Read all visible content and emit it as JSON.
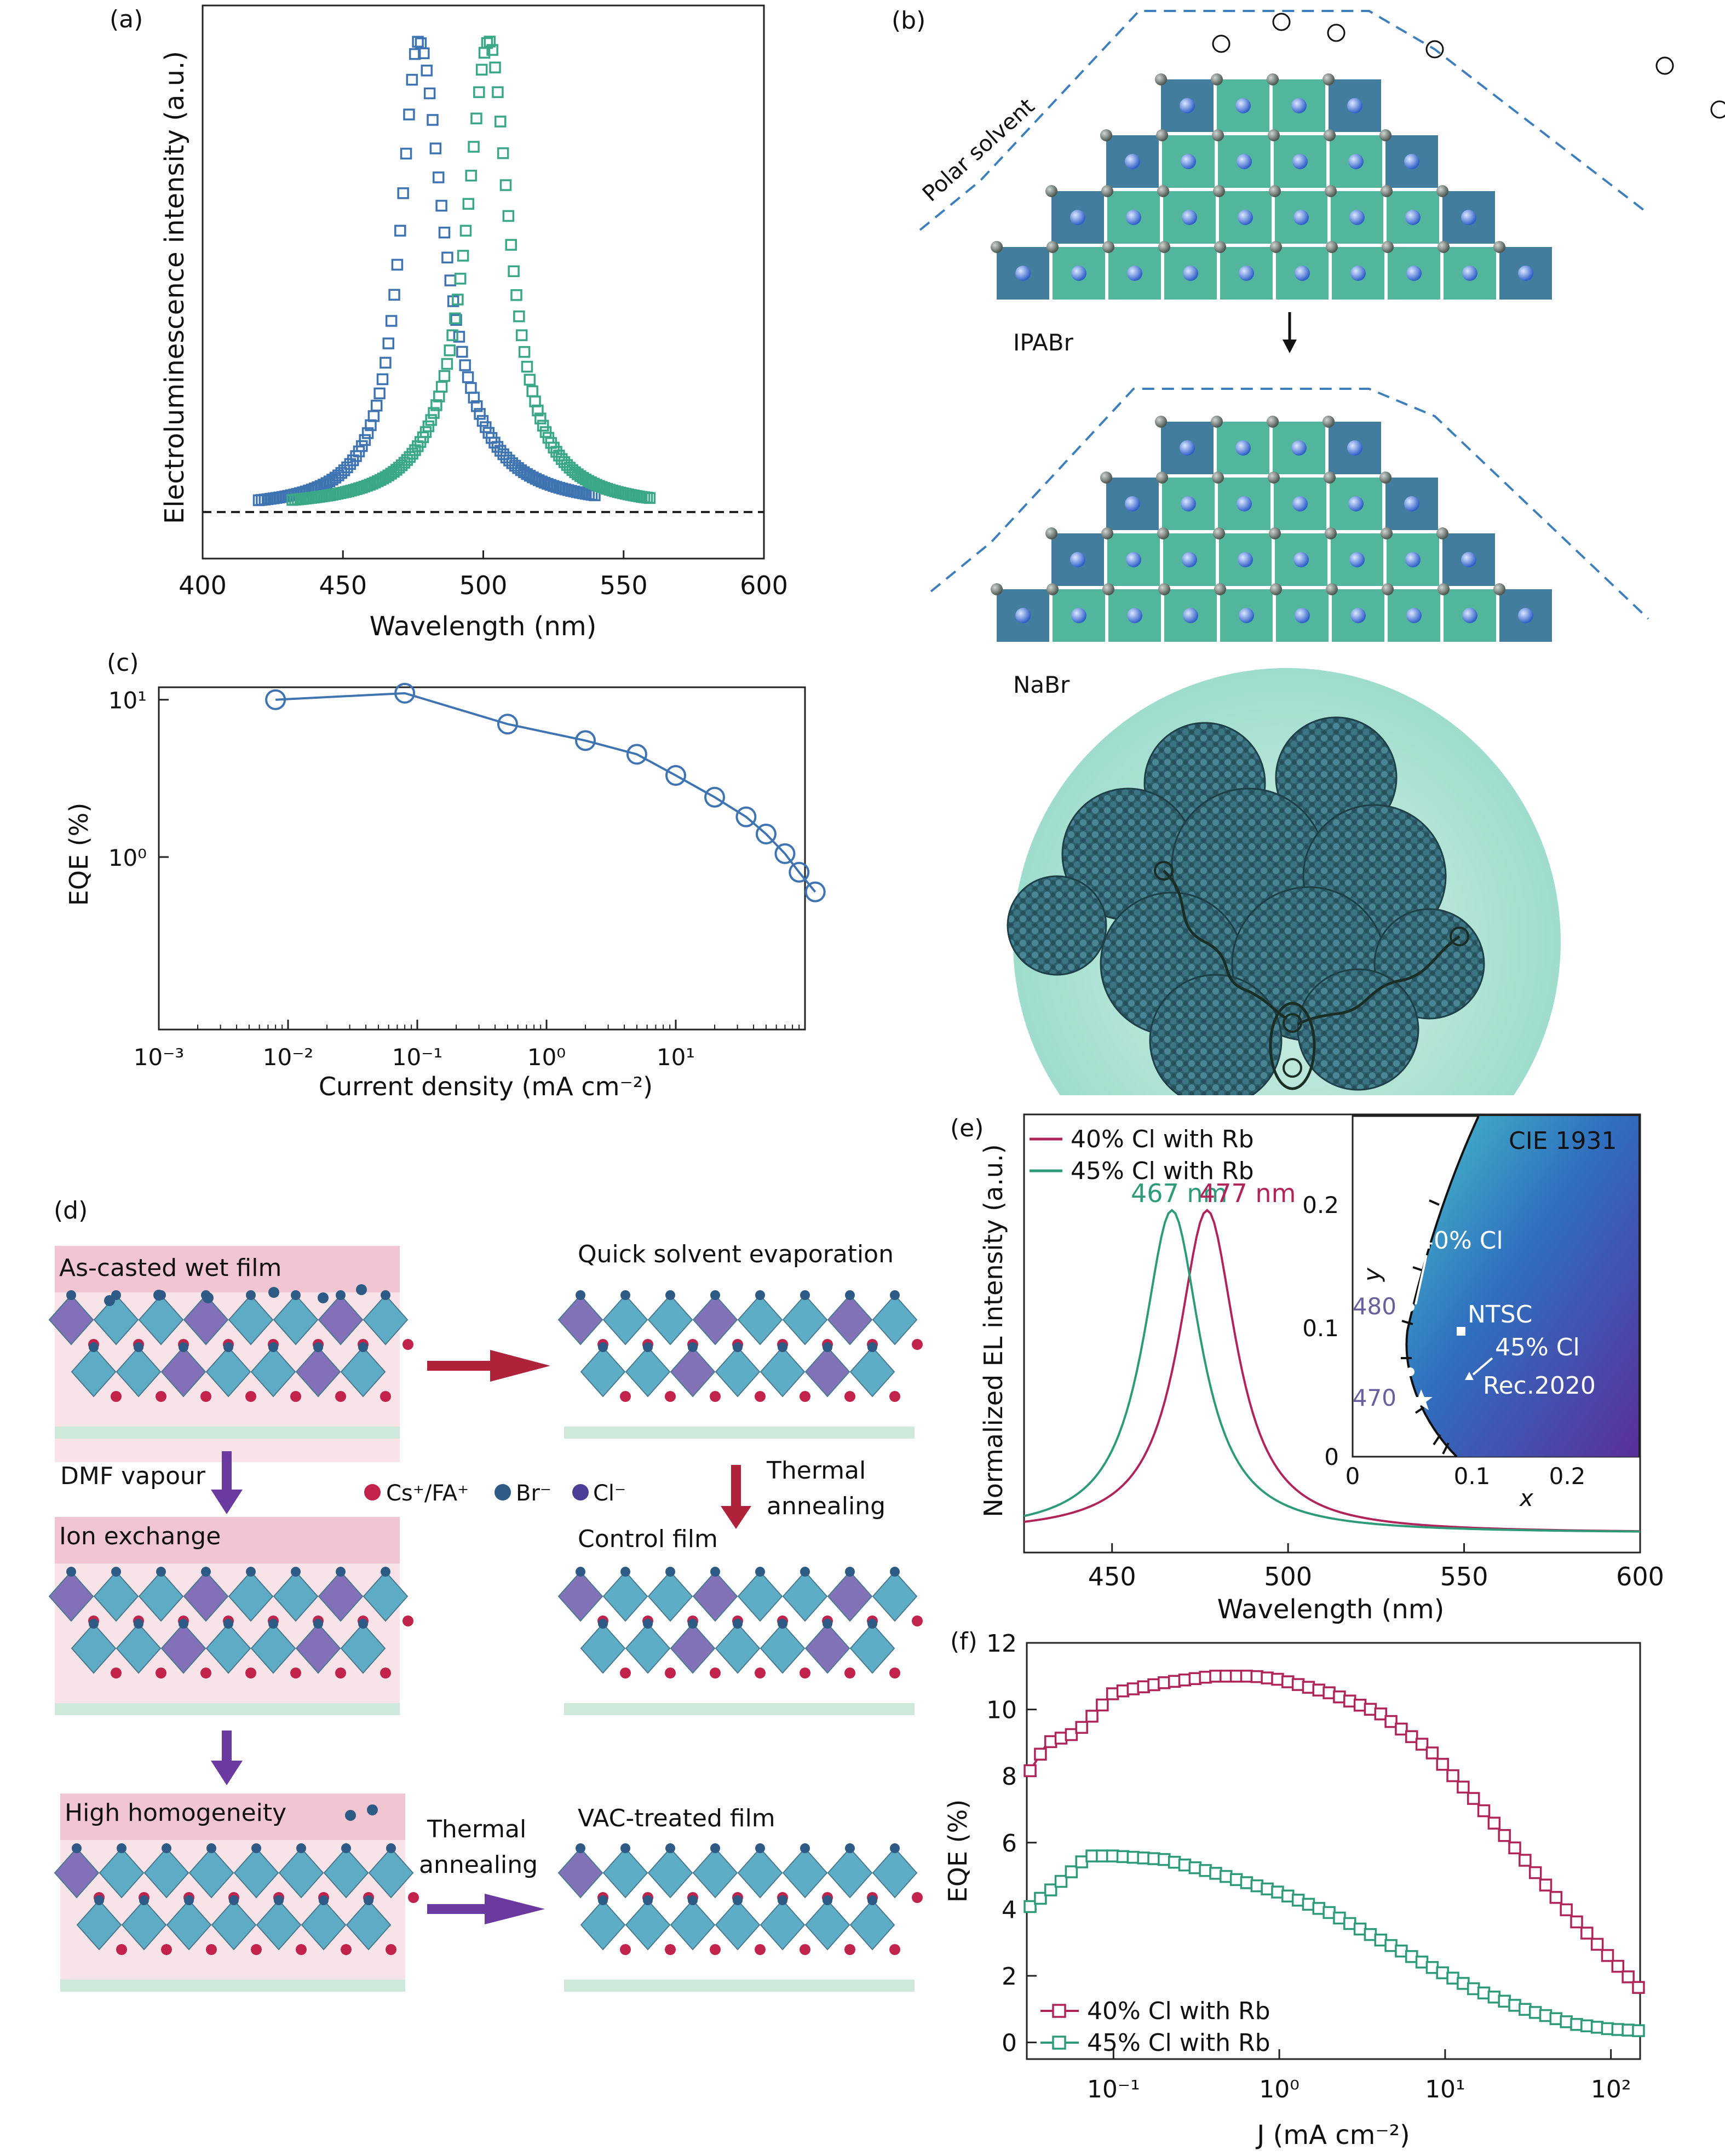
{
  "panels": {
    "a": {
      "letter": "(a)"
    },
    "b": {
      "letter": "(b)",
      "polar_solvent": "Polar solvent",
      "ipabr": "IPABr",
      "nabr": "NaBr"
    },
    "c": {
      "letter": "(c)"
    },
    "d": {
      "letter": "(d)",
      "as_casted": "As-casted wet film",
      "quick_evap": "Quick solvent evaporation",
      "dmf_vapour": "DMF vapour",
      "legend_cs": "Cs⁺/FA⁺",
      "legend_br": "Br⁻",
      "legend_cl": "Cl⁻",
      "thermal1a": "Thermal",
      "thermal1b": "annealing",
      "ion_exchange": "Ion exchange",
      "control_film": "Control film",
      "high_homogeneity": "High homogeneity",
      "thermal2a": "Thermal",
      "thermal2b": "annealing",
      "vac_film": "VAC-treated film"
    },
    "e": {
      "letter": "(e)",
      "peak_green": "467 nm",
      "peak_red": "477 nm",
      "cie_title": "CIE 1931",
      "cie_xlabel": "x",
      "cie_ylabel": "y",
      "cie_xticks": [
        "0",
        "0.1",
        "0.2"
      ],
      "cie_yticks": [
        "0",
        "0.1",
        "0.2"
      ],
      "cie_labels": [
        "40% Cl",
        "NTSC",
        "45% Cl",
        "Rec.2020",
        "480",
        "470"
      ]
    },
    "f": {
      "letter": "(f)"
    }
  },
  "chart_data": [
    {
      "id": "a",
      "type": "scatter",
      "xlabel": "Wavelength (nm)",
      "ylabel": "Electroluminescence intensity (a.u.)",
      "xlim": [
        400,
        600
      ],
      "xticks": [
        "400",
        "450",
        "500",
        "550",
        "600"
      ],
      "baseline": "dashed",
      "series": [
        {
          "color": "#3f74b3",
          "center": 477,
          "width_left": 8,
          "width_right": 11,
          "x_start": 420,
          "x_end": 540
        },
        {
          "color": "#3aa886",
          "center": 502,
          "width_left": 10,
          "width_right": 9,
          "x_start": 432,
          "x_end": 560
        }
      ]
    },
    {
      "id": "c",
      "type": "line",
      "xlabel": "Current density (mA cm⁻²)",
      "ylabel": "EQE (%)",
      "xscale": "log",
      "yscale": "log",
      "xlim": [
        0.001,
        100
      ],
      "ylim": [
        0.08,
        12
      ],
      "xticks": [
        "10⁻³",
        "10⁻²",
        "10⁻¹",
        "10⁰",
        "10¹"
      ],
      "yticks": [
        "10¹",
        "10⁰"
      ],
      "x": [
        0.008,
        0.08,
        0.5,
        2,
        5,
        10,
        20,
        35,
        50,
        70,
        90,
        120
      ],
      "y": [
        10,
        11,
        7,
        5.5,
        4.5,
        3.3,
        2.4,
        1.8,
        1.4,
        1.05,
        0.8,
        0.6
      ]
    },
    {
      "id": "e",
      "type": "line",
      "xlabel": "Wavelength (nm)",
      "ylabel": "Normalized EL intensity (a.u.)",
      "xlim": [
        425,
        600
      ],
      "xticks": [
        "450",
        "500",
        "550",
        "600"
      ],
      "series": [
        {
          "name": "40% Cl with Rb",
          "color": "#b0245a",
          "peak": 477,
          "fwhm": 20
        },
        {
          "name": "45% Cl with Rb",
          "color": "#2e9b78",
          "peak": 467,
          "fwhm": 20
        }
      ]
    },
    {
      "id": "f",
      "type": "line",
      "xlabel": "J (mA cm⁻²)",
      "ylabel": "EQE (%)",
      "xscale": "log",
      "xlim": [
        0.03,
        150
      ],
      "ylim": [
        -0.5,
        12
      ],
      "xticks": [
        "10⁻¹",
        "10⁰",
        "10¹",
        "10²"
      ],
      "yticks": [
        "0",
        "2",
        "4",
        "6",
        "8",
        "10",
        "12"
      ],
      "series": [
        {
          "name": "40% Cl with Rb",
          "color": "#b0245a",
          "x": [
            0.03,
            0.04,
            0.06,
            0.1,
            0.2,
            0.4,
            0.7,
            1.0,
            2,
            4,
            8,
            15,
            30,
            60,
            100,
            150
          ],
          "y": [
            8.0,
            9.0,
            9.3,
            10.5,
            10.8,
            11.0,
            11.0,
            10.9,
            10.5,
            9.9,
            8.8,
            7.3,
            5.5,
            3.7,
            2.5,
            1.6
          ]
        },
        {
          "name": "45% Cl with Rb",
          "color": "#2e9b78",
          "x": [
            0.03,
            0.04,
            0.05,
            0.07,
            0.1,
            0.2,
            0.4,
            1.0,
            2,
            4,
            8,
            15,
            30,
            60,
            100,
            150
          ],
          "y": [
            4.0,
            4.5,
            4.9,
            5.6,
            5.6,
            5.5,
            5.1,
            4.5,
            3.9,
            3.1,
            2.3,
            1.6,
            1.0,
            0.55,
            0.4,
            0.35
          ]
        }
      ]
    }
  ]
}
